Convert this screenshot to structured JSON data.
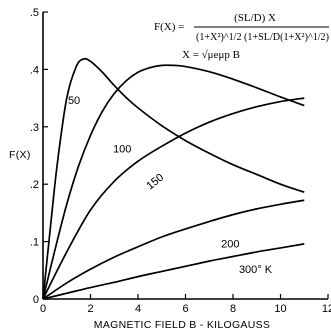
{
  "chart_data": {
    "type": "line",
    "xlabel": "MAGNETIC FIELD B - KILOGAUSS",
    "ylabel": "F(X)",
    "xlim": [
      0,
      12
    ],
    "ylim": [
      0,
      0.5
    ],
    "x_ticks": [
      0,
      2,
      4,
      6,
      8,
      10,
      12
    ],
    "x_tick_labels": [
      "0",
      "2",
      "4",
      "6",
      "8",
      "10",
      "12"
    ],
    "y_ticks": [
      0,
      0.1,
      0.2,
      0.3,
      0.4,
      0.5
    ],
    "y_tick_labels": [
      "0",
      ".1",
      ".2",
      ".3",
      ".4",
      ".5"
    ],
    "grid": false,
    "formula": {
      "lhs": "F(X) =",
      "numerator": "(SL/D) X",
      "denominator": "(1+X²)^1/2 (1+SL/D(1+X²)^1/2)",
      "definition": "X = √μeμp B"
    },
    "series": [
      {
        "name": "50",
        "x": [
          0,
          0.3,
          0.6,
          1.0,
          1.4,
          1.7,
          2.0,
          2.5,
          3.0,
          3.5,
          4.0,
          5.0,
          6.0,
          7.0,
          8.0,
          9.0,
          10.0,
          11.0
        ],
        "y": [
          0,
          0.12,
          0.235,
          0.35,
          0.405,
          0.418,
          0.414,
          0.395,
          0.372,
          0.351,
          0.333,
          0.302,
          0.276,
          0.254,
          0.234,
          0.217,
          0.2,
          0.186
        ]
      },
      {
        "name": "100",
        "x": [
          0,
          0.5,
          1.0,
          1.5,
          2.0,
          2.5,
          3.0,
          3.5,
          4.0,
          4.5,
          5.0,
          5.5,
          6.0,
          7.0,
          8.0,
          9.0,
          10.0,
          11.0
        ],
        "y": [
          0,
          0.085,
          0.165,
          0.232,
          0.285,
          0.327,
          0.358,
          0.38,
          0.395,
          0.403,
          0.407,
          0.407,
          0.405,
          0.396,
          0.383,
          0.368,
          0.352,
          0.337
        ]
      },
      {
        "name": "150",
        "x": [
          0,
          1.0,
          2.0,
          3.0,
          4.0,
          5.0,
          6.0,
          7.0,
          8.0,
          9.0,
          10.0,
          11.0
        ],
        "y": [
          0,
          0.082,
          0.155,
          0.205,
          0.24,
          0.266,
          0.289,
          0.308,
          0.323,
          0.335,
          0.344,
          0.35
        ]
      },
      {
        "name": "200",
        "x": [
          0,
          1.0,
          2.0,
          3.0,
          4.0,
          5.0,
          6.0,
          7.0,
          8.0,
          9.0,
          10.0,
          11.0
        ],
        "y": [
          0,
          0.028,
          0.052,
          0.073,
          0.091,
          0.108,
          0.122,
          0.135,
          0.147,
          0.157,
          0.165,
          0.172
        ]
      },
      {
        "name": "300° K",
        "x": [
          0,
          1.0,
          2.0,
          3.0,
          4.0,
          5.0,
          6.0,
          7.0,
          8.0,
          9.0,
          10.0,
          11.0
        ],
        "y": [
          0,
          0.01,
          0.02,
          0.029,
          0.039,
          0.048,
          0.057,
          0.066,
          0.074,
          0.082,
          0.089,
          0.096
        ]
      }
    ]
  }
}
